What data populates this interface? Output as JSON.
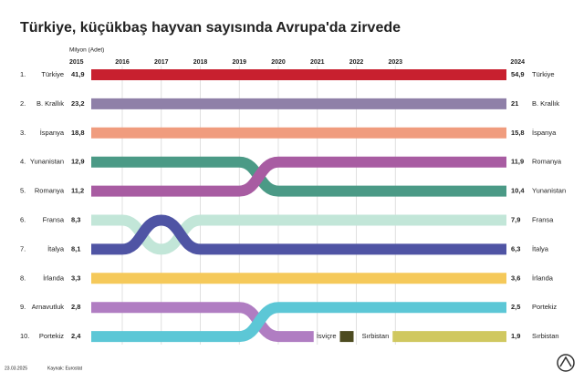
{
  "chart_data": {
    "type": "bump",
    "title": "Türkiye, küçükbaş hayvan sayısında Avrupa'da zirvede",
    "unit_label": "Milyon (Adet)",
    "years": [
      2015,
      2016,
      2017,
      2018,
      2019,
      2020,
      2021,
      2022,
      2023,
      2024
    ],
    "rank_labels": [
      "1.",
      "2.",
      "3.",
      "4.",
      "5.",
      "6.",
      "7.",
      "8.",
      "9.",
      "10."
    ],
    "grid": true,
    "series": [
      {
        "name": "Türkiye",
        "color": "#c8202f",
        "ranks": [
          1,
          1,
          1,
          1,
          1,
          1,
          1,
          1,
          1,
          1
        ],
        "values": [
          41.9,
          54.9
        ],
        "value_labels": [
          "41,9",
          "54,9"
        ]
      },
      {
        "name": "B. Krallık",
        "color": "#8f80a8",
        "ranks": [
          2,
          2,
          2,
          2,
          2,
          2,
          2,
          2,
          2,
          2
        ],
        "values": [
          23.2,
          21
        ],
        "value_labels": [
          "23,2",
          "21"
        ]
      },
      {
        "name": "İspanya",
        "color": "#f09c7e",
        "ranks": [
          3,
          3,
          3,
          3,
          3,
          3,
          3,
          3,
          3,
          3
        ],
        "values": [
          18.8,
          15.8
        ],
        "value_labels": [
          "18,8",
          "15,8"
        ]
      },
      {
        "name": "Yunanistan",
        "color": "#4b9a86",
        "ranks": [
          4,
          4,
          4,
          4,
          4,
          5,
          5,
          5,
          5,
          5
        ],
        "values": [
          12.9,
          10.4
        ],
        "value_labels": [
          "12,9",
          "10,4"
        ]
      },
      {
        "name": "Romanya",
        "color": "#a85ca2",
        "ranks": [
          5,
          5,
          5,
          5,
          5,
          4,
          4,
          4,
          4,
          4
        ],
        "values": [
          11.2,
          11.9
        ],
        "value_labels": [
          "11,2",
          "11,9"
        ]
      },
      {
        "name": "Fransa",
        "color": "#c2e6d8",
        "ranks": [
          6,
          6,
          7,
          6,
          6,
          6,
          6,
          6,
          6,
          6
        ],
        "values": [
          8.3,
          7.9
        ],
        "value_labels": [
          "8,3",
          "7,9"
        ]
      },
      {
        "name": "İtalya",
        "color": "#4f54a4",
        "ranks": [
          7,
          7,
          6,
          7,
          7,
          7,
          7,
          7,
          7,
          7
        ],
        "values": [
          8.1,
          6.3
        ],
        "value_labels": [
          "8,1",
          "6,3"
        ]
      },
      {
        "name": "İrlanda",
        "color": "#f5c95a",
        "ranks": [
          8,
          8,
          8,
          8,
          8,
          8,
          8,
          8,
          8,
          8
        ],
        "values": [
          3.3,
          3.6
        ],
        "value_labels": [
          "3,3",
          "3,6"
        ]
      },
      {
        "name": "Arnavutluk",
        "color": "#b07dc2",
        "ranks": [
          9,
          9,
          9,
          9,
          9,
          10,
          10,
          null,
          null,
          null
        ],
        "values": [
          2.8,
          null
        ],
        "value_labels": [
          "2,8",
          null
        ]
      },
      {
        "name": "Portekiz",
        "color": "#5cc7d6",
        "ranks": [
          10,
          10,
          10,
          10,
          10,
          9,
          9,
          9,
          9,
          9
        ],
        "values": [
          2.4,
          2.5
        ],
        "value_labels": [
          "2,4",
          "2,5"
        ]
      },
      {
        "name": "İsviçre",
        "color": "#4d4b20",
        "ranks": [
          null,
          null,
          null,
          null,
          null,
          null,
          null,
          10,
          null,
          null
        ],
        "values": [
          null,
          null
        ],
        "value_labels": [
          null,
          null
        ]
      },
      {
        "name": "Sırbistan",
        "color": "#d0c860",
        "ranks": [
          null,
          null,
          null,
          null,
          null,
          null,
          null,
          null,
          10,
          10
        ],
        "values": [
          null,
          1.9
        ],
        "value_labels": [
          null,
          "1,9"
        ]
      }
    ],
    "footer_date": "23.03.2025",
    "source": "Kaynak: Eurostat"
  }
}
